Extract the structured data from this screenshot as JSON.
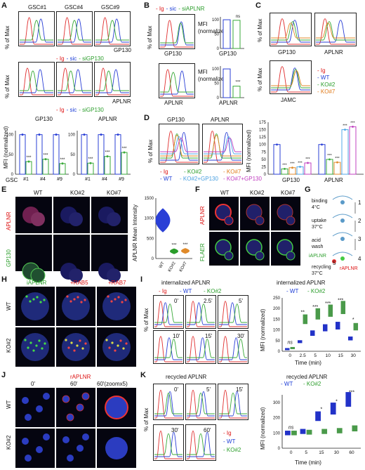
{
  "panels": {
    "A": "A",
    "B": "B",
    "C": "C",
    "D": "D",
    "E": "E",
    "F": "F",
    "G": "G",
    "H": "H",
    "I": "I",
    "J": "J",
    "K": "K"
  },
  "common": {
    "pct_max": "% of Max",
    "mfi_norm": "MFI (normalized)",
    "mfi": "MFI",
    "normalized": "(normalized)"
  },
  "A": {
    "gsc": [
      "GSC#1",
      "GSC#4",
      "GSC#9"
    ],
    "gp130": "GP130",
    "aplnr": "APLNR",
    "leg_ig": "- Ig",
    "leg_sic": "- sic",
    "leg_siGP130": "- siGP130",
    "xl": "GSC",
    "cats": [
      "#1",
      "#4",
      "#9"
    ],
    "ticks": [
      "0",
      "50",
      "100"
    ],
    "stars": "***"
  },
  "B": {
    "leg_ig": "- Ig",
    "leg_sic": "- sic",
    "leg_siAPLNR": "- siAPLNR",
    "gp130": "GP130",
    "aplnr": "APLNR",
    "ns": "ns",
    "stars": "***",
    "ticks": [
      "0",
      "50",
      "100"
    ]
  },
  "C": {
    "gp130": "GP130",
    "aplnr": "APLNR",
    "jamc": "JAMC",
    "legend": [
      "- Ig",
      "- WT",
      "- KO#2",
      "- KO#7"
    ]
  },
  "D": {
    "gp130": "GP130",
    "aplnr": "APLNR",
    "legend": [
      "- Ig",
      "- KO#2",
      "- KO#7",
      "- WT",
      "- KO#2+GP130",
      "- KO#7+GP130"
    ],
    "ticks": [
      "0",
      "25",
      "50",
      "75",
      "100",
      "125",
      "150",
      "175"
    ],
    "stars": "***"
  },
  "E": {
    "rows": [
      "APLNR",
      "GP130"
    ],
    "cols": [
      "WT",
      "KO#2",
      "KO#7"
    ],
    "ylabel": "APLNR Mean Intensity",
    "cats": [
      "WT",
      "KO#2",
      "KO#7"
    ],
    "ticks": [
      "0",
      "500",
      "1000",
      "1500"
    ],
    "stars": "***"
  },
  "F": {
    "rows": [
      "APLNR",
      "FLAER"
    ],
    "cols": [
      "WT",
      "KO#2",
      "KO#7"
    ]
  },
  "G": {
    "steps": [
      "binding 4°C",
      "uptake 37°C",
      "acid wash",
      "iAPLNR",
      "recycling 37°C",
      "rAPLNR"
    ],
    "nums": [
      "1",
      "2",
      "3",
      "4",
      "5"
    ]
  },
  "H": {
    "cols": [
      "iAPLNR",
      "+RAB5",
      "+RAB7"
    ],
    "rows": [
      "WT",
      "KO#2"
    ]
  },
  "I": {
    "title": "internalized APLNR",
    "legend": [
      "- Ig",
      "- WT",
      "- KO#2"
    ],
    "times": [
      "0'",
      "2.5'",
      "5'",
      "10'",
      "15'",
      "30'"
    ],
    "chart_title": "internalized APLNR",
    "xlabel": "Time  (min)",
    "xticks": [
      "0",
      "2.5",
      "5",
      "10",
      "15",
      "30"
    ],
    "yticks": [
      "0",
      "50",
      "100",
      "150",
      "200",
      "250"
    ],
    "sig": [
      "ns",
      "**",
      "***",
      "***",
      "***",
      "*"
    ]
  },
  "J": {
    "title": "rAPLNR",
    "cols": [
      "0'",
      "60'",
      "60'(zoomx5)"
    ],
    "rows": [
      "WT",
      "KO#2"
    ]
  },
  "K": {
    "title": "recycled APLNR",
    "legend": [
      "- Ig",
      "- WT",
      "- KO#2"
    ],
    "times": [
      "0'",
      "5'",
      "15'",
      "30'",
      "60'"
    ],
    "chart_title": "recycled APLNR",
    "xlabel": "Time  (min)",
    "xticks": [
      "0",
      "5",
      "15",
      "30",
      "60"
    ],
    "yticks": [
      "0",
      "100",
      "200",
      "300"
    ],
    "sig": [
      "ns",
      "*",
      "*",
      "***"
    ]
  },
  "chart_data": [
    {
      "type": "bar",
      "panel": "A-GP130",
      "categories": [
        "#1",
        "#4",
        "#9"
      ],
      "series": [
        {
          "name": "sic",
          "values": [
            100,
            100,
            100
          ]
        },
        {
          "name": "siGP130",
          "values": [
            32,
            38,
            27
          ]
        }
      ],
      "ylim": [
        0,
        110
      ]
    },
    {
      "type": "bar",
      "panel": "A-APLNR",
      "categories": [
        "#1",
        "#4",
        "#9"
      ],
      "series": [
        {
          "name": "sic",
          "values": [
            100,
            100,
            100
          ]
        },
        {
          "name": "siGP130",
          "values": [
            28,
            45,
            55
          ]
        }
      ],
      "ylim": [
        0,
        110
      ]
    },
    {
      "type": "bar",
      "panel": "B-GP130",
      "categories": [
        "sic",
        "siAPLNR"
      ],
      "values": [
        100,
        98
      ],
      "ylim": [
        0,
        110
      ]
    },
    {
      "type": "bar",
      "panel": "B-APLNR",
      "categories": [
        "sic",
        "siAPLNR"
      ],
      "values": [
        100,
        40
      ],
      "ylim": [
        0,
        110
      ]
    },
    {
      "type": "bar",
      "panel": "D",
      "groups": [
        "GP130",
        "APLNR"
      ],
      "series": [
        {
          "name": "WT",
          "values": [
            100,
            100
          ]
        },
        {
          "name": "KO#2",
          "values": [
            18,
            50
          ]
        },
        {
          "name": "KO#7",
          "values": [
            22,
            40
          ]
        },
        {
          "name": "KO#2+GP130",
          "values": [
            25,
            150
          ]
        },
        {
          "name": "KO#7+GP130",
          "values": [
            38,
            160
          ]
        }
      ],
      "ylim": [
        0,
        175
      ]
    },
    {
      "type": "bar",
      "panel": "I",
      "categories": [
        "0",
        "2.5",
        "5",
        "10",
        "15",
        "30"
      ],
      "series": [
        {
          "name": "WT",
          "values": [
            10,
            45,
            85,
            110,
            120,
            60
          ]
        },
        {
          "name": "KO#2",
          "values": [
            15,
            150,
            175,
            190,
            205,
            115
          ]
        }
      ],
      "ylim": [
        0,
        250
      ]
    },
    {
      "type": "bar",
      "panel": "K",
      "categories": [
        "0",
        "5",
        "15",
        "30",
        "60"
      ],
      "series": [
        {
          "name": "WT",
          "values": [
            100,
            110,
            210,
            260,
            320
          ]
        },
        {
          "name": "KO#2",
          "values": [
            100,
            105,
            110,
            115,
            130
          ]
        }
      ],
      "ylim": [
        0,
        350
      ]
    }
  ]
}
